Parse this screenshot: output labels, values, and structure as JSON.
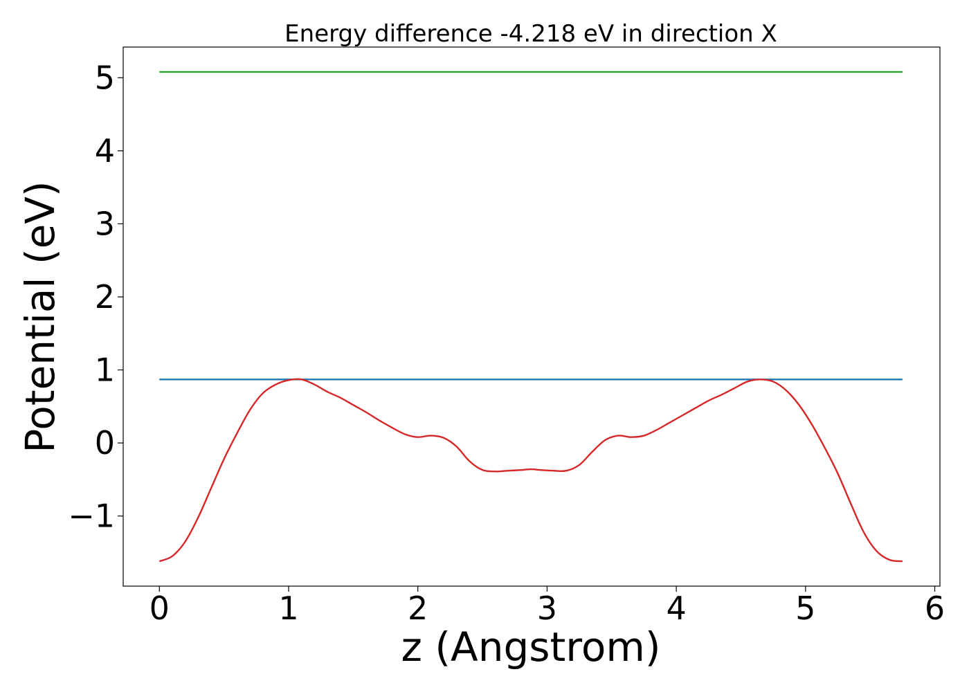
{
  "chart_data": {
    "type": "line",
    "title": "Energy difference -4.218 eV in direction X",
    "xlabel": "z (Angstrom)",
    "ylabel": "Potential (eV)",
    "xlim": [
      -0.28,
      6.04
    ],
    "ylim": [
      -1.96,
      5.42
    ],
    "x_ticks": [
      0,
      1,
      2,
      3,
      4,
      5,
      6
    ],
    "x_tick_labels": [
      "0",
      "1",
      "2",
      "3",
      "4",
      "5",
      "6"
    ],
    "y_ticks": [
      -1,
      0,
      1,
      2,
      3,
      4,
      5
    ],
    "y_tick_labels": [
      "−1",
      "0",
      "1",
      "2",
      "3",
      "4",
      "5"
    ],
    "grid": false,
    "series": [
      {
        "color": "#2ca02c",
        "x": [
          0,
          5.75
        ],
        "y": [
          5.08,
          5.08
        ]
      },
      {
        "color": "#1f77b4",
        "x": [
          0,
          5.75
        ],
        "y": [
          0.87,
          0.87
        ]
      },
      {
        "color": "#d62728",
        "x": [
          0,
          0.1,
          0.2,
          0.3,
          0.4,
          0.5,
          0.6,
          0.7,
          0.8,
          0.9,
          1.0,
          1.1,
          1.2,
          1.3,
          1.4,
          1.5,
          1.6,
          1.7,
          1.8,
          1.9,
          2.0,
          2.1,
          2.2,
          2.3,
          2.4,
          2.5,
          2.6,
          2.7,
          2.8,
          2.875,
          2.95,
          3.05,
          3.15,
          3.25,
          3.35,
          3.45,
          3.55,
          3.65,
          3.75,
          3.85,
          3.95,
          4.05,
          4.15,
          4.25,
          4.35,
          4.45,
          4.55,
          4.65,
          4.75,
          4.85,
          4.95,
          5.05,
          5.15,
          5.25,
          5.35,
          5.45,
          5.55,
          5.65,
          5.75
        ],
        "y": [
          -1.62,
          -1.55,
          -1.35,
          -1.02,
          -0.62,
          -0.22,
          0.13,
          0.45,
          0.68,
          0.8,
          0.86,
          0.87,
          0.8,
          0.7,
          0.62,
          0.52,
          0.42,
          0.31,
          0.21,
          0.12,
          0.08,
          0.1,
          0.07,
          -0.05,
          -0.25,
          -0.37,
          -0.39,
          -0.38,
          -0.37,
          -0.36,
          -0.37,
          -0.38,
          -0.38,
          -0.3,
          -0.12,
          0.04,
          0.1,
          0.08,
          0.1,
          0.18,
          0.28,
          0.38,
          0.48,
          0.58,
          0.66,
          0.75,
          0.84,
          0.87,
          0.84,
          0.72,
          0.52,
          0.25,
          -0.07,
          -0.42,
          -0.83,
          -1.22,
          -1.48,
          -1.6,
          -1.62
        ]
      }
    ]
  }
}
